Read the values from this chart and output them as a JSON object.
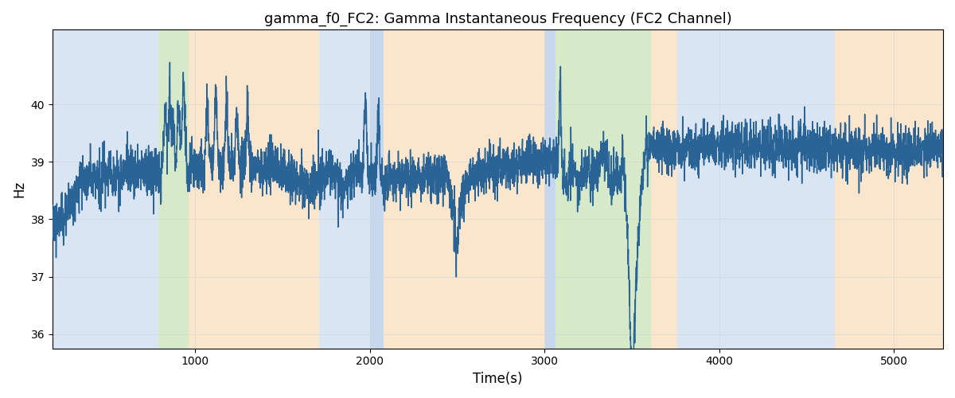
{
  "title": "gamma_f0_FC2: Gamma Instantaneous Frequency (FC2 Channel)",
  "xlabel": "Time(s)",
  "ylabel": "Hz",
  "xlim": [
    185,
    5280
  ],
  "ylim": [
    35.75,
    41.3
  ],
  "yticks": [
    36,
    37,
    38,
    39,
    40
  ],
  "line_color": "#2a6496",
  "line_width": 1.1,
  "figsize": [
    12,
    5
  ],
  "dpi": 100,
  "bg_bands": [
    {
      "xmin": 185,
      "xmax": 790,
      "color": "#aec6e8",
      "alpha": 0.45
    },
    {
      "xmin": 790,
      "xmax": 965,
      "color": "#b5d9a0",
      "alpha": 0.55
    },
    {
      "xmin": 965,
      "xmax": 1710,
      "color": "#f5c990",
      "alpha": 0.45
    },
    {
      "xmin": 1710,
      "xmax": 2000,
      "color": "#aec6e8",
      "alpha": 0.45
    },
    {
      "xmin": 2000,
      "xmax": 2080,
      "color": "#aec6e8",
      "alpha": 0.7
    },
    {
      "xmin": 2080,
      "xmax": 3005,
      "color": "#f5c990",
      "alpha": 0.45
    },
    {
      "xmin": 3005,
      "xmax": 3065,
      "color": "#aec6e8",
      "alpha": 0.7
    },
    {
      "xmin": 3065,
      "xmax": 3610,
      "color": "#b5d9a0",
      "alpha": 0.55
    },
    {
      "xmin": 3610,
      "xmax": 3760,
      "color": "#f5c990",
      "alpha": 0.45
    },
    {
      "xmin": 3760,
      "xmax": 4660,
      "color": "#aec6e8",
      "alpha": 0.45
    },
    {
      "xmin": 4660,
      "xmax": 5280,
      "color": "#f5c990",
      "alpha": 0.45
    }
  ],
  "seed": 99,
  "n_points": 5100,
  "t_start": 185,
  "t_end": 5280,
  "base_freq": 39.0
}
